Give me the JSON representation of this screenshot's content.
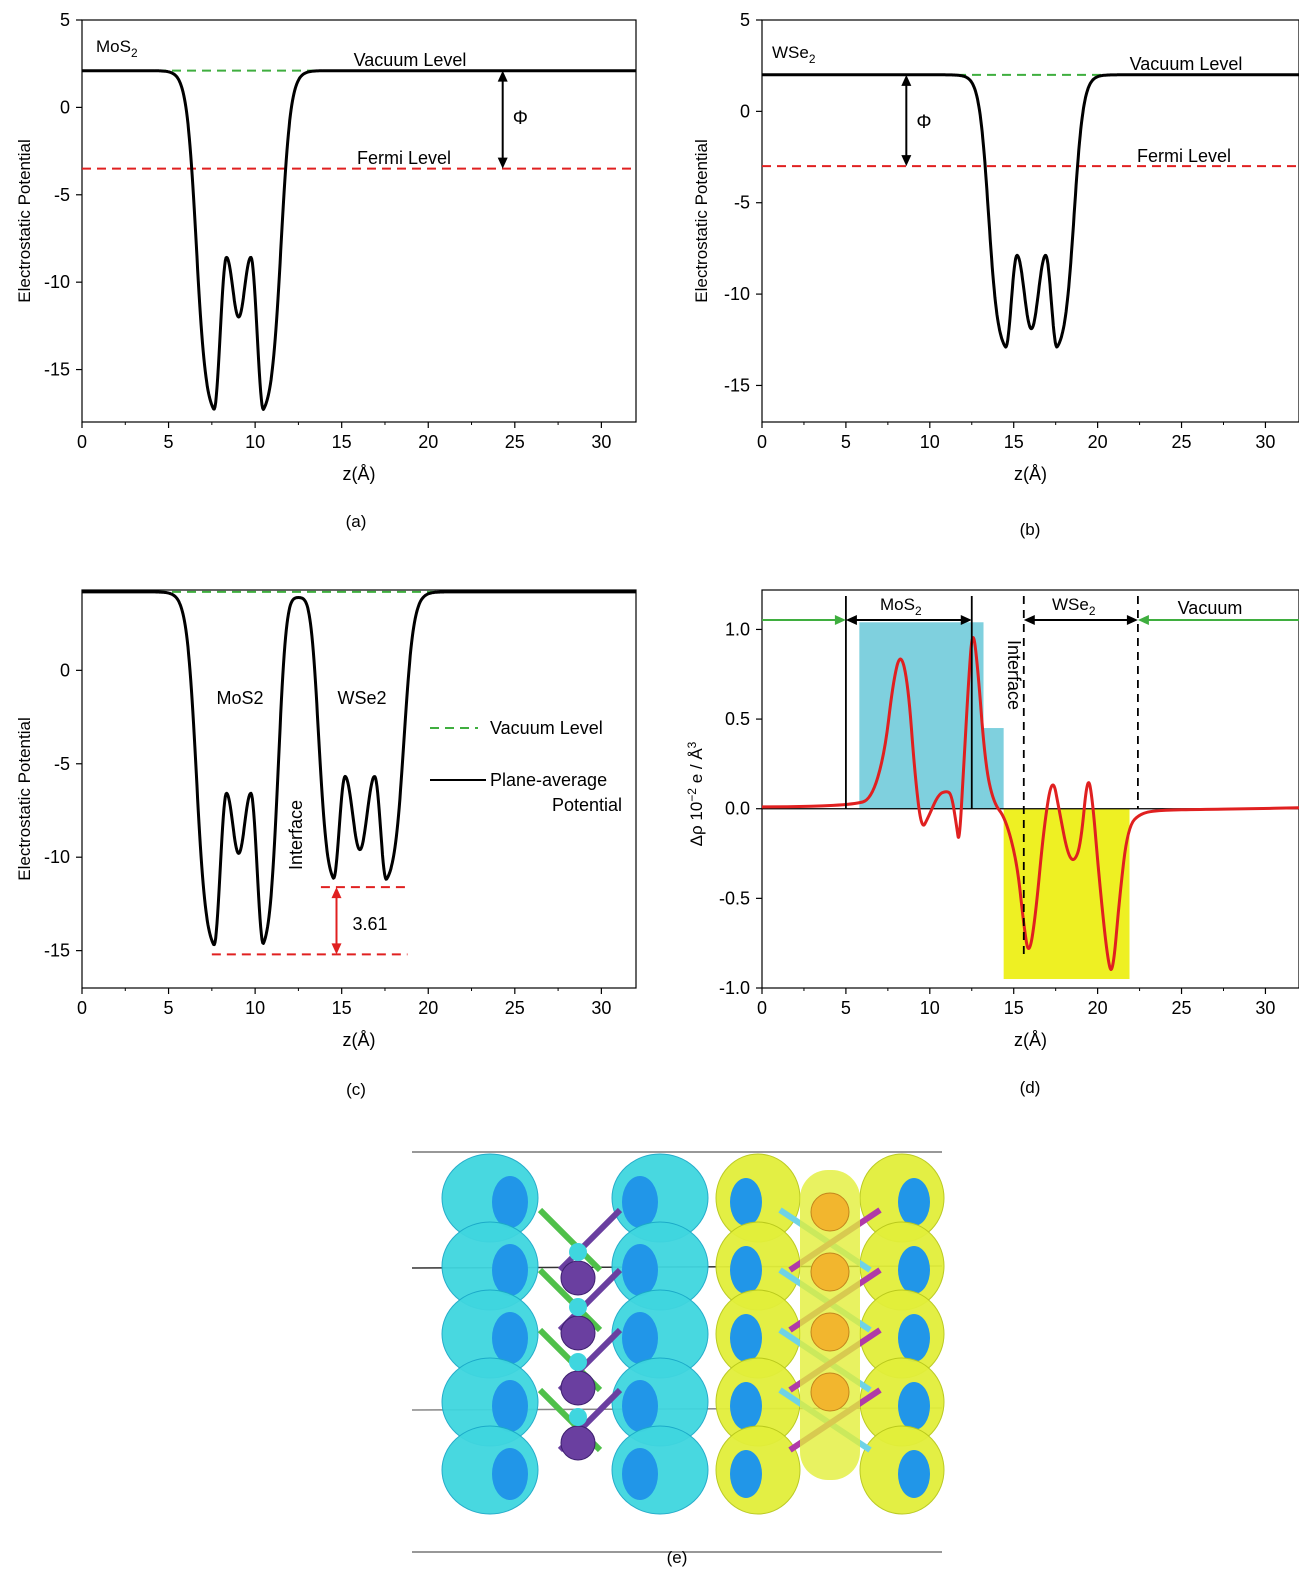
{
  "colors": {
    "potential": "#000000",
    "vacuum": "#3fae3f",
    "fermi": "#e02020",
    "mos2_label": "#2b3f9e",
    "wse2_label": "#a040a0",
    "interface": "#e02020",
    "delta_rho": "#e02020",
    "mos2_block": "#7fd0de",
    "wse2_block": "#eef023",
    "vacuum_arrow": "#3fae3f"
  },
  "captions": [
    "(a)",
    "(b)",
    "(c)",
    "(d)",
    "(e)"
  ],
  "chart_data": [
    {
      "id": "a",
      "type": "line",
      "ylabel": "Electrostatic Potential",
      "xlabel": "z(Å)",
      "xlim": [
        0,
        32
      ],
      "ylim": [
        -18,
        5
      ],
      "xticks": [
        0,
        5,
        10,
        15,
        20,
        25,
        30
      ],
      "yticks": [
        5,
        0,
        -5,
        -10,
        -15
      ],
      "material_label": {
        "base": "MoS",
        "sub": "2"
      },
      "series": [
        {
          "name": "Plane-average Potential",
          "profile": {
            "vac": 2.1,
            "edges": [
              6.3,
              11.8
            ],
            "min": [
              {
                "z": 7.6,
                "v": -17.8
              },
              {
                "z": 10.5,
                "v": -17.8
              }
            ],
            "peaks": [
              {
                "z": 8.35,
                "v": -8.6
              },
              {
                "z": 9.75,
                "v": -8.6
              }
            ],
            "mid": {
              "z": 9.05,
              "v": -12.0
            }
          }
        }
      ],
      "lines": [
        {
          "label": "Vacuum Level",
          "y": 2.1
        },
        {
          "label": "Fermi Level",
          "y": -3.5
        }
      ],
      "annotation": {
        "label": "Φ",
        "x": 24.3,
        "from": 2.1,
        "to": -3.5
      }
    },
    {
      "id": "b",
      "type": "line",
      "ylabel": "Electrostatic Potential",
      "xlabel": "z(Å)",
      "xlim": [
        0,
        32
      ],
      "ylim": [
        -17,
        5
      ],
      "xticks": [
        0,
        5,
        10,
        15,
        20,
        25,
        30
      ],
      "yticks": [
        5,
        0,
        -5,
        -10,
        -15
      ],
      "material_label": {
        "base": "WSe",
        "sub": "2"
      },
      "series": [
        {
          "name": "Plane-average Potential",
          "profile": {
            "vac": 2.0,
            "edges": [
              13.0,
              19.1
            ],
            "min": [
              {
                "z": 14.5,
                "v": -13.3
              },
              {
                "z": 17.6,
                "v": -13.3
              }
            ],
            "peaks": [
              {
                "z": 15.2,
                "v": -7.9
              },
              {
                "z": 16.9,
                "v": -7.9
              }
            ],
            "mid": {
              "z": 16.05,
              "v": -11.9
            }
          }
        }
      ],
      "lines": [
        {
          "label": "Vacuum Level",
          "y": 2.0
        },
        {
          "label": "Fermi Level",
          "y": -3.0
        }
      ],
      "annotation": {
        "label": "Φ",
        "x": 8.6,
        "from": 2.0,
        "to": -3.0
      }
    },
    {
      "id": "c",
      "type": "line",
      "ylabel": "Electrostatic Potential",
      "xlabel": "z(Å)",
      "xlim": [
        0,
        32
      ],
      "ylim": [
        -17,
        4.3
      ],
      "xticks": [
        0,
        5,
        10,
        15,
        20,
        25,
        30
      ],
      "yticks": [
        0,
        -5,
        -10,
        -15
      ],
      "legend": [
        {
          "label": "Vacuum Level",
          "style": "dashed-green"
        },
        {
          "label": "Plane-average",
          "label2": "Potential",
          "style": "solid-black"
        }
      ],
      "labels": [
        "MoS2",
        "WSe2"
      ],
      "interface_label": "Interface",
      "series": [
        {
          "name": "Plane-average Potential",
          "profile": {
            "vac": 4.2,
            "edges": [
              6.3,
              18.8
            ],
            "barrier": {
              "z": 12.5,
              "v": 3.9
            },
            "min": [
              {
                "z": 7.6,
                "v": -15.2
              },
              {
                "z": 10.5,
                "v": -15.2
              },
              {
                "z": 14.5,
                "v": -11.6
              },
              {
                "z": 17.6,
                "v": -11.6
              }
            ],
            "peaks": [
              {
                "z": 8.35,
                "v": -6.6
              },
              {
                "z": 9.75,
                "v": -6.6
              },
              {
                "z": 15.2,
                "v": -5.7
              },
              {
                "z": 16.9,
                "v": -5.7
              }
            ],
            "mid": [
              {
                "z": 9.05,
                "v": -9.8
              },
              {
                "z": 16.05,
                "v": -9.6
              }
            ]
          }
        }
      ],
      "lines": [
        {
          "label": "Vacuum Level",
          "y": 4.2
        },
        {
          "label": "",
          "y": -15.2,
          "x0": 7.5,
          "x1": 18.8
        },
        {
          "label": "",
          "y": -11.6,
          "x0": 13.8,
          "x1": 18.8
        }
      ],
      "annotation": {
        "label": "3.61",
        "x": 14.7,
        "from": -11.6,
        "to": -15.2
      }
    },
    {
      "id": "d",
      "type": "line",
      "ylabel_base": "Δρ 10",
      "ylabel_sup": "−2",
      "ylabel_rest": " e / Å",
      "ylabel_sup2": "3",
      "xlabel": "z(Å)",
      "xlim": [
        0,
        32
      ],
      "ylim": [
        -1.0,
        1.22
      ],
      "xticks": [
        0,
        5,
        10,
        15,
        20,
        25,
        30
      ],
      "yticks": [
        "1.0",
        "0.5",
        "0.0",
        "-0.5",
        "-1.0"
      ],
      "region_labels": {
        "mos2": {
          "base": "MoS",
          "sub": "2"
        },
        "wse2": {
          "base": "WSe",
          "sub": "2"
        },
        "vacuum": "Vacuum",
        "interface": "Interface"
      },
      "boundaries": {
        "mos2_left": 5.0,
        "mos2_right": 12.5,
        "wse2_left": 15.6,
        "wse2_right": 22.4
      },
      "bars": [
        {
          "x0": 5.8,
          "x1": 13.2,
          "y": 1.04
        },
        {
          "x0": 13.2,
          "x1": 14.4,
          "y": 0.45
        },
        {
          "x0": 14.4,
          "x1": 21.9,
          "y": -0.95
        }
      ],
      "series": [
        {
          "name": "Δρ",
          "points": [
            [
              0,
              0.01
            ],
            [
              3,
              0.012
            ],
            [
              5.5,
              0.025
            ],
            [
              6.5,
              0.05
            ],
            [
              7.3,
              0.3
            ],
            [
              7.8,
              0.7
            ],
            [
              8.25,
              0.88
            ],
            [
              8.7,
              0.7
            ],
            [
              9.1,
              0.2
            ],
            [
              9.5,
              -0.12
            ],
            [
              9.9,
              -0.05
            ],
            [
              10.5,
              0.08
            ],
            [
              11.0,
              0.1
            ],
            [
              11.3,
              0.08
            ],
            [
              11.6,
              -0.1
            ],
            [
              11.75,
              -0.2
            ],
            [
              12.0,
              0.2
            ],
            [
              12.3,
              0.7
            ],
            [
              12.55,
              1.02
            ],
            [
              12.85,
              0.8
            ],
            [
              13.3,
              0.25
            ],
            [
              13.8,
              0.03
            ],
            [
              14.5,
              -0.05
            ],
            [
              15.2,
              -0.3
            ],
            [
              15.6,
              -0.65
            ],
            [
              15.9,
              -0.83
            ],
            [
              16.3,
              -0.6
            ],
            [
              16.8,
              -0.1
            ],
            [
              17.3,
              0.19
            ],
            [
              17.7,
              0.0
            ],
            [
              18.2,
              -0.25
            ],
            [
              18.6,
              -0.3
            ],
            [
              19.0,
              -0.2
            ],
            [
              19.4,
              0.2
            ],
            [
              19.7,
              0.05
            ],
            [
              20.1,
              -0.4
            ],
            [
              20.6,
              -0.85
            ],
            [
              20.9,
              -0.93
            ],
            [
              21.3,
              -0.5
            ],
            [
              21.8,
              -0.1
            ],
            [
              22.6,
              -0.02
            ],
            [
              24,
              -0.008
            ],
            [
              26,
              -0.004
            ],
            [
              29,
              0.0
            ],
            [
              32,
              0.005
            ]
          ]
        }
      ]
    }
  ]
}
